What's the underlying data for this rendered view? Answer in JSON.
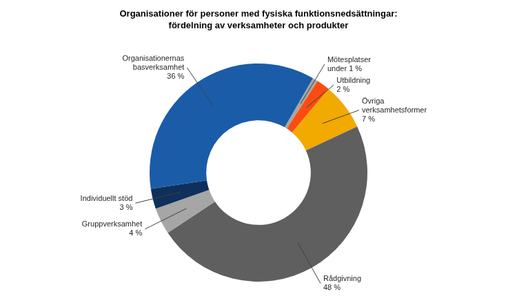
{
  "chart_data": {
    "type": "doughnut",
    "title": [
      "Organisationer för personer med fysiska funktionsnedsättningar:",
      "fördelning av verksamheter och produkter"
    ],
    "categories": [
      "Mötesplatser",
      "Utbildning",
      "Övriga verksamhetsformer",
      "Rådgivning",
      "Gruppverksamhet",
      "Individuellt stöd",
      "Organisationernas basverksamhet"
    ],
    "values": [
      0.8,
      2,
      7,
      48,
      4,
      3,
      36
    ],
    "value_labels": [
      "under 1 %",
      "2 %",
      "7 %",
      "48 %",
      "4 %",
      "3 %",
      "36 %"
    ],
    "colors": [
      "#a6a6a6",
      "#fa4c12",
      "#f2a900",
      "#5f5f5f",
      "#a6a6a6",
      "#0f2f5c",
      "#1b5ca8"
    ],
    "data_labels": true
  }
}
